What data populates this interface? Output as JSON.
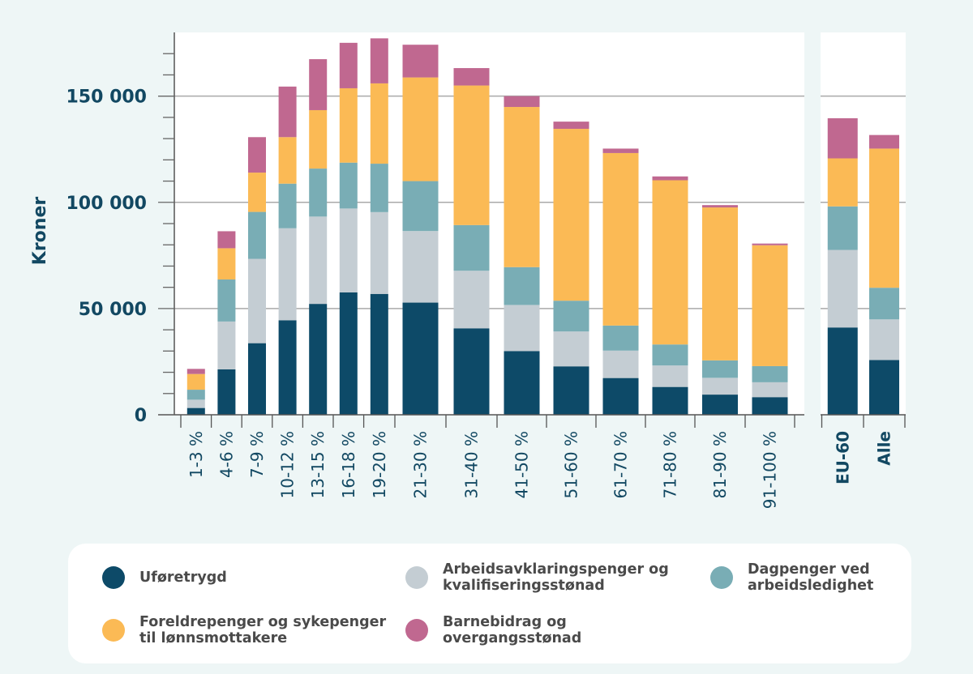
{
  "chart_data": {
    "type": "bar",
    "stacked": true,
    "title": "",
    "xlabel": "",
    "ylabel": "Kroner",
    "ylim": [
      0,
      180000
    ],
    "yticks": [
      0,
      50000,
      100000,
      150000
    ],
    "ytick_labels": [
      "0",
      "50 000",
      "100 000",
      "150 000"
    ],
    "minor_tick_step": 10000,
    "grid": true,
    "legend_position": "bottom",
    "panels": [
      {
        "categories": [
          "1-3 %",
          "4-6 %",
          "7-9 %",
          "10-12 %",
          "13-15 %",
          "16-18 %",
          "19-20 %",
          "21-30 %",
          "31-40 %",
          "41-50 %",
          "51-60 %",
          "61-70 %",
          "71-80 %",
          "81-90 %",
          "91-100 %"
        ],
        "bold_labels": false
      },
      {
        "categories": [
          "EU-60",
          "Alle"
        ],
        "bold_labels": true
      }
    ],
    "categories": [
      "1-3 %",
      "4-6 %",
      "7-9 %",
      "10-12 %",
      "13-15 %",
      "16-18 %",
      "19-20 %",
      "21-30 %",
      "31-40 %",
      "41-50 %",
      "51-60 %",
      "61-70 %",
      "71-80 %",
      "81-90 %",
      "91-100 %",
      "EU-60",
      "Alle"
    ],
    "series": [
      {
        "name": "Uføretrygd",
        "color": "#0D4A68",
        "values": [
          3200,
          21400,
          33700,
          44500,
          52200,
          57600,
          56900,
          52800,
          40700,
          30000,
          22800,
          17300,
          13100,
          9500,
          8300,
          41100,
          25800
        ]
      },
      {
        "name": "Arbeidsavklaringspenger og kvalifiseringsstønad",
        "color": "#C4CDD3",
        "values": [
          3900,
          22500,
          39700,
          43300,
          41100,
          39500,
          38500,
          33700,
          27100,
          21700,
          16400,
          12900,
          10100,
          7900,
          7000,
          36500,
          19100
        ]
      },
      {
        "name": "Dagpenger ved arbeidsledighet",
        "color": "#79ADB5",
        "values": [
          4700,
          19800,
          22100,
          21000,
          22600,
          21600,
          22800,
          23500,
          21500,
          17800,
          14500,
          11800,
          9900,
          8200,
          7600,
          20500,
          14900
        ]
      },
      {
        "name": "Foreldrepenger og sykepenger til lønnsmottakere",
        "color": "#FBBA55",
        "values": [
          7400,
          14700,
          18500,
          21900,
          27500,
          35000,
          37800,
          48800,
          65700,
          75400,
          80900,
          81200,
          77300,
          72000,
          56900,
          22600,
          65500
        ]
      },
      {
        "name": "Barnebidrag og overgangsstønad",
        "color": "#C06890",
        "values": [
          2400,
          8000,
          16700,
          23800,
          24000,
          21400,
          21200,
          15400,
          8200,
          5100,
          3400,
          2100,
          1800,
          1100,
          800,
          18900,
          6400
        ]
      }
    ]
  },
  "legend": {
    "items": [
      {
        "label": "Uføretrygd",
        "color": "#0D4A68"
      },
      {
        "label": "Arbeidsavklaringspenger og\nkvalifiseringsstønad",
        "color": "#C4CDD3"
      },
      {
        "label": "Dagpenger ved\narbeidsledighet",
        "color": "#79ADB5"
      },
      {
        "label": "Foreldrepenger og sykepenger\ntil lønnsmottakere",
        "color": "#FBBA55"
      },
      {
        "label": "Barnebidrag og\novergangsstønad",
        "color": "#C06890"
      }
    ]
  }
}
